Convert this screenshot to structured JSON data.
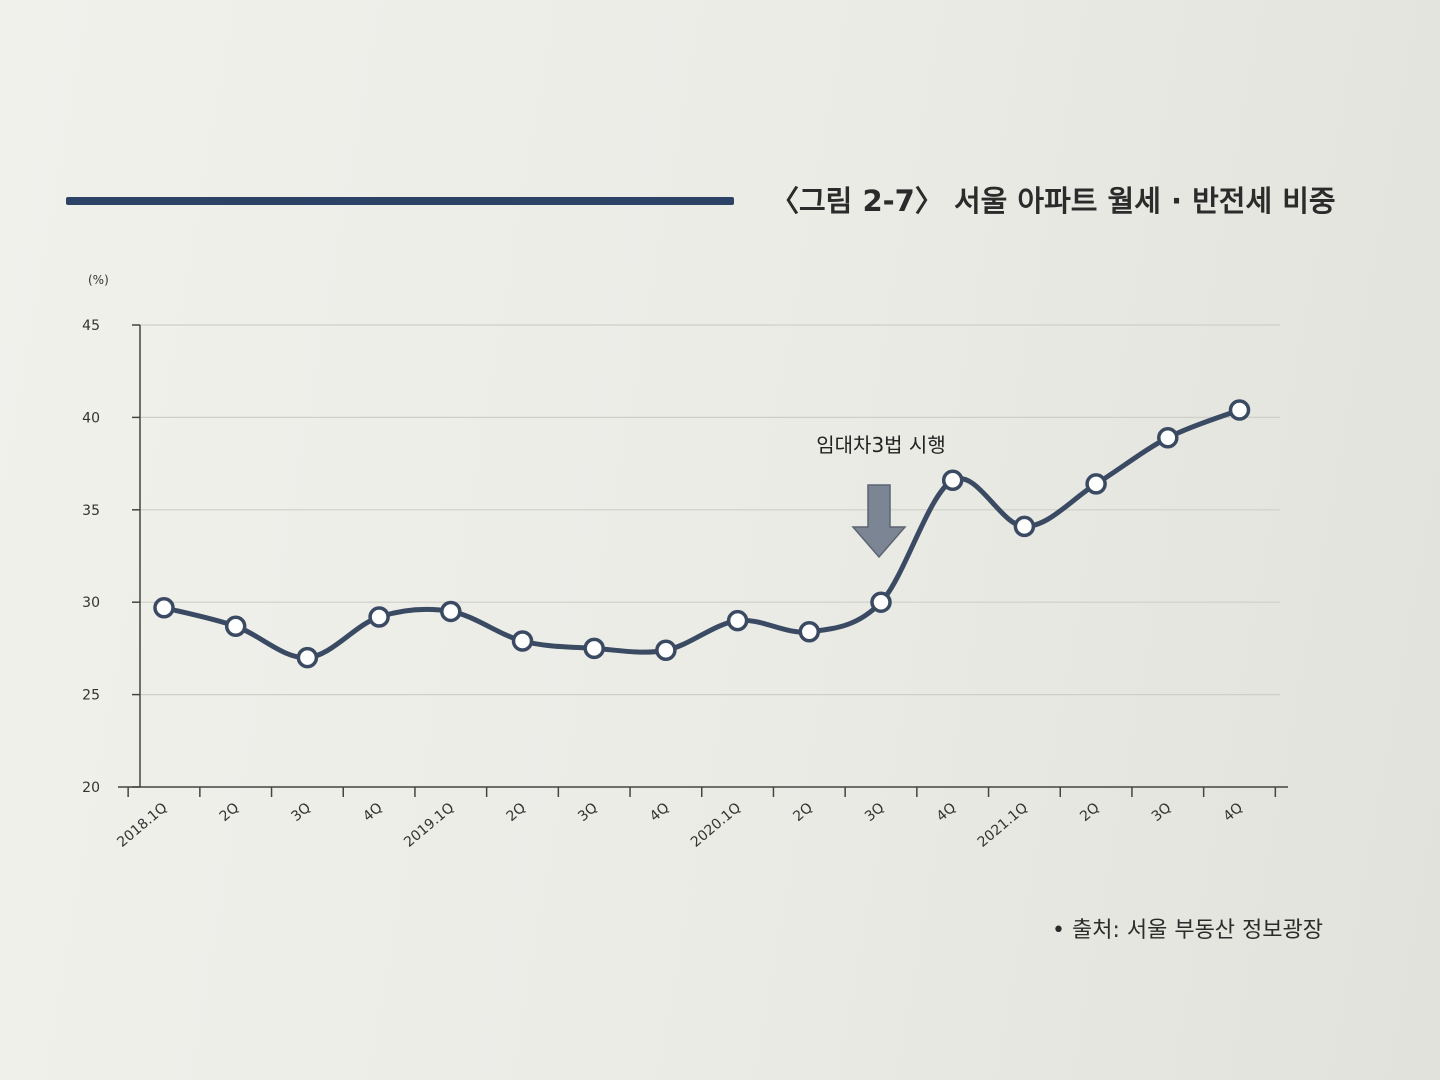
{
  "figure": {
    "title": "〈그림 2-7〉 서울 아파트 월세 · 반전세 비중",
    "source": "• 출처: 서울 부동산 정보광장"
  },
  "chart_data": {
    "type": "line",
    "title": "〈그림 2-7〉 서울 아파트 월세 · 반전세 비중",
    "unit_label": "(%)",
    "xlabel": "",
    "ylabel": "",
    "ylim": [
      20,
      45
    ],
    "yticks": [
      "20",
      "25",
      "30",
      "35",
      "40",
      "45"
    ],
    "grid": true,
    "categories": [
      "2018.1Q",
      "2Q",
      "3Q",
      "4Q",
      "2019.1Q",
      "2Q",
      "3Q",
      "4Q",
      "2020.1Q",
      "2Q",
      "3Q",
      "4Q",
      "2021.1Q",
      "2Q",
      "3Q",
      "4Q"
    ],
    "series": [
      {
        "values": [
          29.7,
          28.7,
          27.0,
          29.2,
          29.5,
          27.9,
          27.5,
          27.4,
          29.0,
          28.4,
          30.0,
          36.6,
          34.1,
          36.4,
          38.9,
          40.4
        ]
      }
    ],
    "annotation": {
      "text": "임대차3법 시행",
      "category": "3Q",
      "category_index": 10
    },
    "colors": {
      "line": "#3a4a63",
      "marker_fill": "#ffffff",
      "arrow": "#7c8593"
    }
  }
}
